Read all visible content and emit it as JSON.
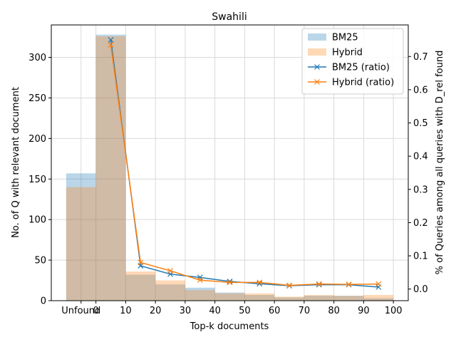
{
  "chart_data": {
    "type": "bar",
    "title": "Swahili",
    "xlabel": "Top-k documents",
    "ylabel": "No. of Q with relevant document",
    "ylabel_right": "% of Queries among all queries with D_rel found",
    "x_tick_labels": [
      "Unfound",
      "0",
      "10",
      "20",
      "30",
      "40",
      "50",
      "60",
      "70",
      "80",
      "90",
      "100"
    ],
    "y_ticks_left": [
      "0",
      "50",
      "100",
      "150",
      "200",
      "250",
      "300"
    ],
    "y_ticks_right": [
      "0.0",
      "0.1",
      "0.2",
      "0.3",
      "0.4",
      "0.5",
      "0.6",
      "0.7"
    ],
    "ylim_left": [
      0,
      340
    ],
    "ylim_right": [
      -0.035,
      0.795
    ],
    "grid": true,
    "legend_position": "top-right",
    "bins": [
      "Unfound",
      "0-10",
      "10-20",
      "20-30",
      "30-40",
      "40-50",
      "50-60",
      "60-70",
      "70-80",
      "80-90",
      "90-100"
    ],
    "series": [
      {
        "name": "BM25",
        "kind": "bar",
        "color": "#1f77b4",
        "values": [
          157,
          328,
          32,
          20,
          16,
          10,
          7,
          4,
          6,
          6,
          3
        ]
      },
      {
        "name": "Hybrid",
        "kind": "bar",
        "color": "#ff7f0e",
        "values": [
          140,
          326,
          36,
          25,
          13,
          9,
          9,
          5,
          7,
          6,
          7
        ]
      },
      {
        "name": "BM25 (ratio)",
        "kind": "line",
        "marker": "x",
        "color": "#1f77b4",
        "x": [
          5,
          15,
          25,
          35,
          45,
          55,
          65,
          75,
          85,
          95
        ],
        "values": [
          0.75,
          0.07,
          0.045,
          0.035,
          0.023,
          0.016,
          0.01,
          0.013,
          0.013,
          0.006
        ]
      },
      {
        "name": "Hybrid (ratio)",
        "kind": "line",
        "marker": "x",
        "color": "#ff7f0e",
        "x": [
          5,
          15,
          25,
          35,
          45,
          55,
          65,
          75,
          85,
          95
        ],
        "values": [
          0.735,
          0.08,
          0.055,
          0.027,
          0.02,
          0.02,
          0.011,
          0.015,
          0.014,
          0.015
        ]
      }
    ]
  }
}
